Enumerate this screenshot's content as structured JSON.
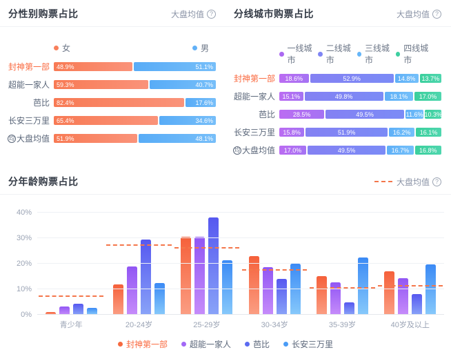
{
  "chart_data": [
    {
      "type": "bar",
      "subtype": "horizontal-stacked-percent",
      "title": "分性别购票占比",
      "avg_label": "大盘均值",
      "help_icon": "?",
      "avg_icon": "均",
      "legend_position": "top",
      "legend": [
        {
          "label": "女",
          "color": "#f8805c"
        },
        {
          "label": "男",
          "color": "#62b1f7"
        }
      ],
      "segment_gradients": [
        "linear-gradient(90deg,#f87a54,#fa937a)",
        "linear-gradient(90deg,#58acf7,#76bef9)"
      ],
      "value_align": [
        "left",
        "right"
      ],
      "highlight_category": "封神第一部",
      "avg_row_index": 4,
      "categories": [
        "封神第一部",
        "超能一家人",
        "芭比",
        "长安三万里",
        "大盘均值"
      ],
      "rows": [
        [
          48.9,
          51.1
        ],
        [
          59.3,
          40.7
        ],
        [
          82.4,
          17.6
        ],
        [
          65.4,
          34.6
        ],
        [
          51.9,
          48.1
        ]
      ]
    },
    {
      "type": "bar",
      "subtype": "horizontal-stacked-percent",
      "title": "分线城市购票占比",
      "avg_label": "大盘均值",
      "help_icon": "?",
      "avg_icon": "均",
      "legend_position": "top",
      "legend": [
        {
          "label": "一线城市",
          "color": "#ab68f1"
        },
        {
          "label": "二线城市",
          "color": "#7f85f4"
        },
        {
          "label": "三线城市",
          "color": "#66b6f8"
        },
        {
          "label": "四线城市",
          "color": "#3ecfa0"
        }
      ],
      "segment_gradients": [
        "linear-gradient(90deg,#bb6cf2,#a573f3)",
        "linear-gradient(90deg,#8481f3,#7b8bf6)",
        "linear-gradient(90deg,#5fb0f7,#74c0fa)",
        "linear-gradient(90deg,#3bcf9c,#4ed6ae)"
      ],
      "value_align": [
        "center",
        "center",
        "center",
        "center"
      ],
      "highlight_category": "封神第一部",
      "avg_row_index": 4,
      "categories": [
        "封神第一部",
        "超能一家人",
        "芭比",
        "长安三万里",
        "大盘均值"
      ],
      "rows": [
        [
          18.6,
          52.9,
          14.8,
          13.7
        ],
        [
          15.1,
          49.8,
          18.1,
          17.0
        ],
        [
          28.5,
          49.5,
          11.6,
          10.3
        ],
        [
          15.8,
          51.9,
          16.2,
          16.1
        ],
        [
          17.0,
          49.5,
          16.7,
          16.8
        ]
      ]
    },
    {
      "type": "bar",
      "subtype": "vertical-grouped",
      "title": "分年龄购票占比",
      "avg_label": "大盘均值",
      "help_icon": "?",
      "ylim": [
        0,
        44
      ],
      "y_ticks": [
        0,
        10,
        20,
        30,
        40
      ],
      "grid": true,
      "legend_position": "bottom",
      "highlight_series": "封神第一部",
      "categories": [
        "青少年",
        "20-24岁",
        "25-29岁",
        "30-34岁",
        "35-39岁",
        "40岁及以上"
      ],
      "series": [
        {
          "name": "封神第一部",
          "dot_color": "#f6693f",
          "gradient": "linear-gradient(180deg,#f5603a,#fb9e83)",
          "values": [
            1.0,
            12.0,
            30.5,
            23.0,
            15.2,
            17.0
          ]
        },
        {
          "name": "超能一家人",
          "dot_color": "#a268f6",
          "gradient": "linear-gradient(180deg,#9156f4,#c68cfa)",
          "values": [
            3.3,
            19.0,
            30.5,
            18.6,
            12.7,
            14.3
          ]
        },
        {
          "name": "芭比",
          "dot_color": "#5b6bf1",
          "gradient": "linear-gradient(180deg,#5658f0,#89a3f8)",
          "values": [
            4.3,
            29.5,
            38.0,
            14.0,
            4.8,
            8.0
          ]
        },
        {
          "name": "长安三万里",
          "dot_color": "#4b9cf6",
          "gradient": "linear-gradient(180deg,#3b8af5,#87c9fb)",
          "values": [
            2.6,
            12.5,
            21.3,
            20.1,
            22.4,
            19.8
          ]
        }
      ],
      "average_series": {
        "name": "大盘均值",
        "color": "#f4764a",
        "values": [
          6.9,
          27.0,
          26.0,
          17.2,
          10.4,
          11.0
        ]
      }
    }
  ]
}
